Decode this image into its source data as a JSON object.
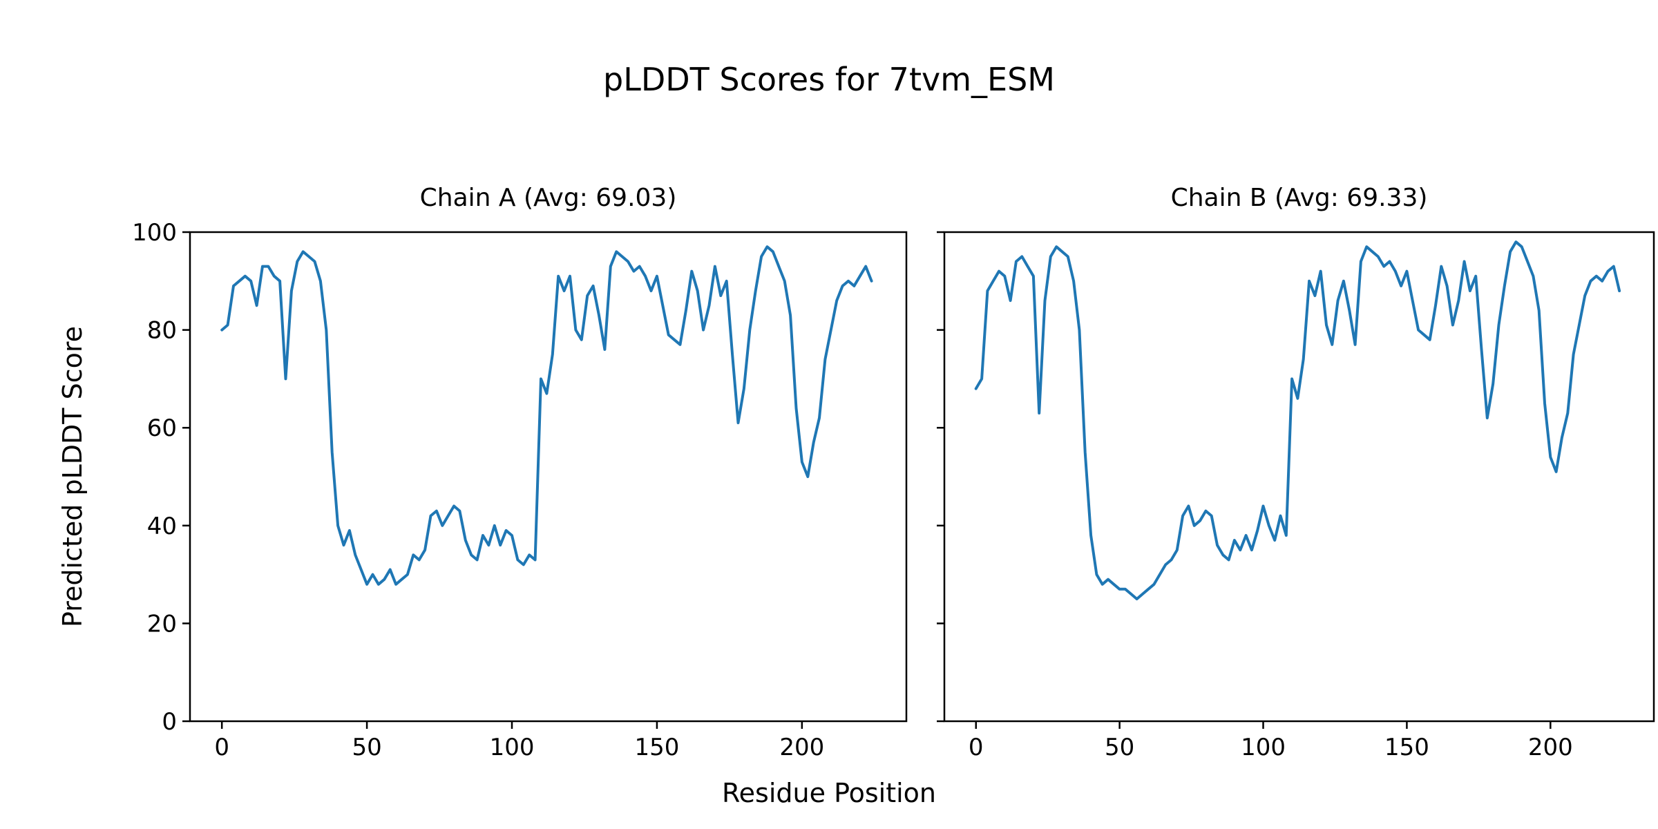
{
  "figure": {
    "title": "pLDDT Scores for 7tvm_ESM",
    "xlabel": "Residue Position",
    "ylabel": "Predicted pLDDT Score"
  },
  "style": {
    "line_color": "#1f77b4",
    "axis_color": "#000000",
    "background": "#ffffff"
  },
  "chart_data": [
    {
      "type": "line",
      "name": "chain-a",
      "title": "Chain A (Avg: 69.03)",
      "avg": 69.03,
      "xlabel": "Residue Position",
      "ylabel": "Predicted pLDDT Score",
      "xlim": [
        -11,
        236
      ],
      "ylim": [
        0,
        100
      ],
      "x_ticks": [
        0,
        50,
        100,
        150,
        200
      ],
      "y_ticks": [
        0,
        20,
        40,
        60,
        80,
        100
      ],
      "show_y_tick_labels": true,
      "grid": false,
      "legend_position": "none",
      "series": [
        {
          "name": "Chain A pLDDT",
          "color": "#1f77b4",
          "x_start": 0,
          "x_step": 2,
          "values": [
            80,
            81,
            89,
            90,
            91,
            90,
            85,
            93,
            93,
            91,
            90,
            70,
            88,
            94,
            96,
            95,
            94,
            90,
            80,
            55,
            40,
            36,
            39,
            34,
            31,
            28,
            30,
            28,
            29,
            31,
            28,
            29,
            30,
            34,
            33,
            35,
            42,
            43,
            40,
            42,
            44,
            43,
            37,
            34,
            33,
            38,
            36,
            40,
            36,
            39,
            38,
            33,
            32,
            34,
            33,
            70,
            67,
            75,
            91,
            88,
            91,
            80,
            78,
            87,
            89,
            83,
            76,
            93,
            96,
            95,
            94,
            92,
            93,
            91,
            88,
            91,
            85,
            79,
            78,
            77,
            84,
            92,
            88,
            80,
            85,
            93,
            87,
            90,
            75,
            61,
            68,
            80,
            88,
            95,
            97,
            96,
            93,
            90,
            83,
            64,
            53,
            50,
            57,
            62,
            74,
            80,
            86,
            89,
            90,
            89,
            91,
            93,
            90
          ]
        }
      ]
    },
    {
      "type": "line",
      "name": "chain-b",
      "title": "Chain B (Avg: 69.33)",
      "avg": 69.33,
      "xlabel": "Residue Position",
      "ylabel": "Predicted pLDDT Score",
      "xlim": [
        -11,
        236
      ],
      "ylim": [
        0,
        100
      ],
      "x_ticks": [
        0,
        50,
        100,
        150,
        200
      ],
      "y_ticks": [
        0,
        20,
        40,
        60,
        80,
        100
      ],
      "show_y_tick_labels": false,
      "grid": false,
      "legend_position": "none",
      "series": [
        {
          "name": "Chain B pLDDT",
          "color": "#1f77b4",
          "x_start": 0,
          "x_step": 2,
          "values": [
            68,
            70,
            88,
            90,
            92,
            91,
            86,
            94,
            95,
            93,
            91,
            63,
            86,
            95,
            97,
            96,
            95,
            90,
            80,
            55,
            38,
            30,
            28,
            29,
            28,
            27,
            27,
            26,
            25,
            26,
            27,
            28,
            30,
            32,
            33,
            35,
            42,
            44,
            40,
            41,
            43,
            42,
            36,
            34,
            33,
            37,
            35,
            38,
            35,
            39,
            44,
            40,
            37,
            42,
            38,
            70,
            66,
            74,
            90,
            87,
            92,
            81,
            77,
            86,
            90,
            84,
            77,
            94,
            97,
            96,
            95,
            93,
            94,
            92,
            89,
            92,
            86,
            80,
            79,
            78,
            85,
            93,
            89,
            81,
            86,
            94,
            88,
            91,
            76,
            62,
            69,
            81,
            89,
            96,
            98,
            97,
            94,
            91,
            84,
            65,
            54,
            51,
            58,
            63,
            75,
            81,
            87,
            90,
            91,
            90,
            92,
            93,
            88
          ]
        }
      ]
    }
  ]
}
